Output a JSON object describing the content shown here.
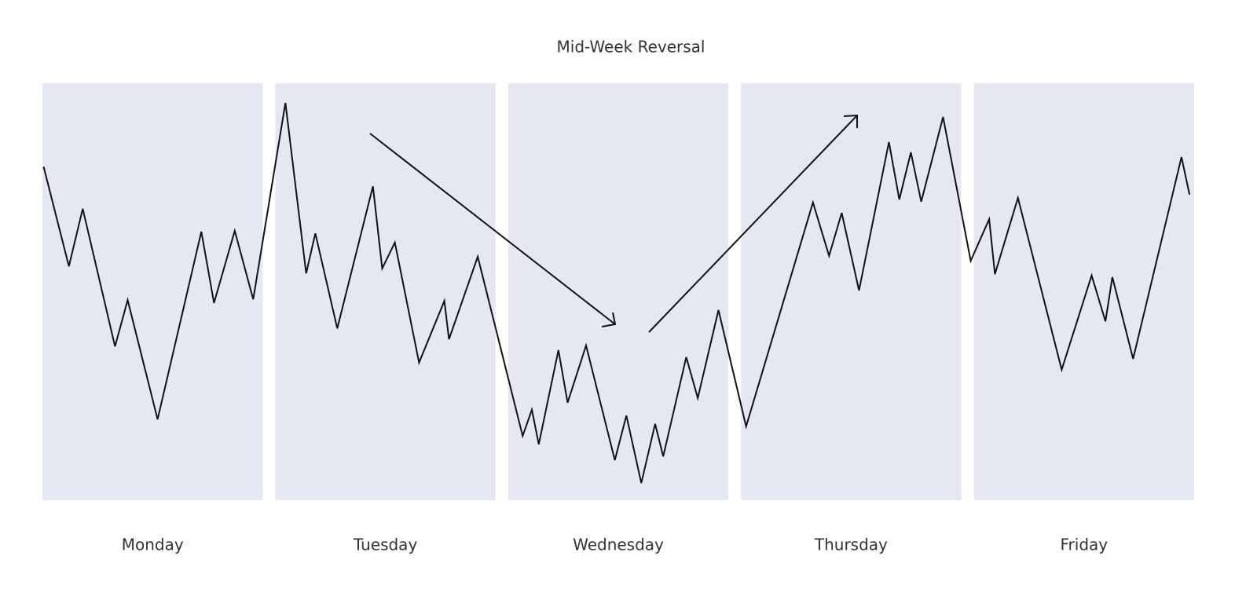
{
  "chart_data": {
    "type": "line",
    "title": "Mid-Week Reversal",
    "categories": [
      "Monday",
      "Tuesday",
      "Wednesday",
      "Thursday",
      "Friday"
    ],
    "panel_color": "#e4e8f3",
    "color": "#111111",
    "xlim": [
      0,
      100
    ],
    "ylim": [
      0,
      100
    ],
    "x": [
      0.1,
      2.3,
      3.5,
      6.3,
      7.4,
      10.0,
      13.8,
      14.9,
      16.7,
      18.3,
      21.1,
      22.9,
      23.7,
      25.6,
      28.7,
      29.5,
      30.6,
      32.7,
      34.9,
      35.3,
      37.8,
      41.7,
      42.5,
      43.1,
      44.8,
      45.6,
      47.2,
      49.7,
      50.7,
      52.0,
      53.2,
      53.9,
      55.9,
      56.9,
      58.7,
      61.1,
      66.9,
      68.3,
      69.4,
      70.9,
      73.5,
      74.4,
      75.4,
      76.3,
      78.2,
      80.6,
      82.2,
      82.7,
      84.7,
      88.5,
      91.1,
      92.3,
      92.9,
      94.7,
      98.9,
      99.6
    ],
    "values": [
      80.0,
      56.1,
      69.9,
      36.9,
      48.0,
      19.4,
      64.4,
      47.3,
      64.6,
      48.2,
      95.3,
      54.4,
      64.0,
      41.2,
      75.3,
      55.6,
      61.8,
      33.0,
      47.8,
      38.6,
      58.4,
      15.4,
      21.7,
      13.4,
      36.0,
      23.4,
      37.1,
      9.6,
      20.3,
      4.1,
      18.3,
      10.5,
      34.3,
      24.5,
      45.6,
      17.7,
      71.4,
      58.6,
      68.9,
      50.3,
      85.9,
      72.1,
      83.4,
      71.6,
      91.9,
      57.4,
      67.4,
      54.2,
      72.5,
      31.3,
      53.9,
      42.9,
      53.5,
      33.9,
      82.3,
      73.3
    ]
  }
}
